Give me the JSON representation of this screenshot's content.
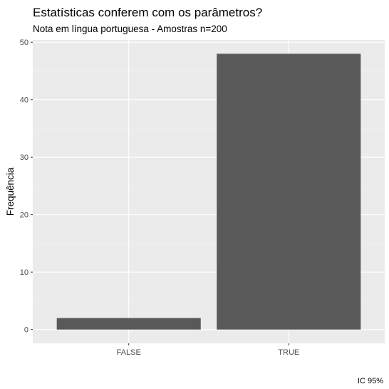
{
  "chart_data": {
    "type": "bar",
    "title": "Estatísticas conferem com os parâmetros?",
    "subtitle": "Nota em língua portuguesa - Amostras n=200",
    "xlabel": "",
    "ylabel": "Frequência",
    "caption": "IC 95%",
    "categories": [
      "FALSE",
      "TRUE"
    ],
    "values": [
      2,
      48
    ],
    "ylim": [
      -2.4,
      50.4
    ],
    "yticks": [
      0,
      10,
      20,
      30,
      40,
      50
    ],
    "grid": true,
    "colors": {
      "panel": "#ebebeb",
      "grid_major": "#ffffff",
      "grid_minor": "#f5f5f5",
      "bar": "#595959",
      "tick_text": "#4d4d4d",
      "tick_mark": "#333333"
    }
  }
}
